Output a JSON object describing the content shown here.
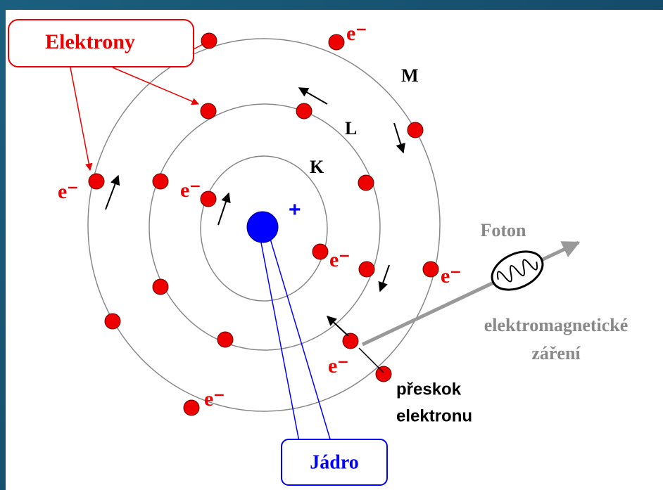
{
  "callouts": {
    "electrons": "Elektrony",
    "nucleus": "Jádro"
  },
  "electron_labels": [
    "e⁻",
    "e⁻",
    "e⁻",
    "e⁻",
    "e⁻",
    "e⁻",
    "e⁻"
  ],
  "shells": [
    "M",
    "L",
    "K"
  ],
  "nucleus_charge": "+",
  "photon": {
    "label": "Foton",
    "caption": [
      "elektromagnetické",
      "záření"
    ]
  },
  "transition": [
    "přeskok",
    "elektronu"
  ]
}
